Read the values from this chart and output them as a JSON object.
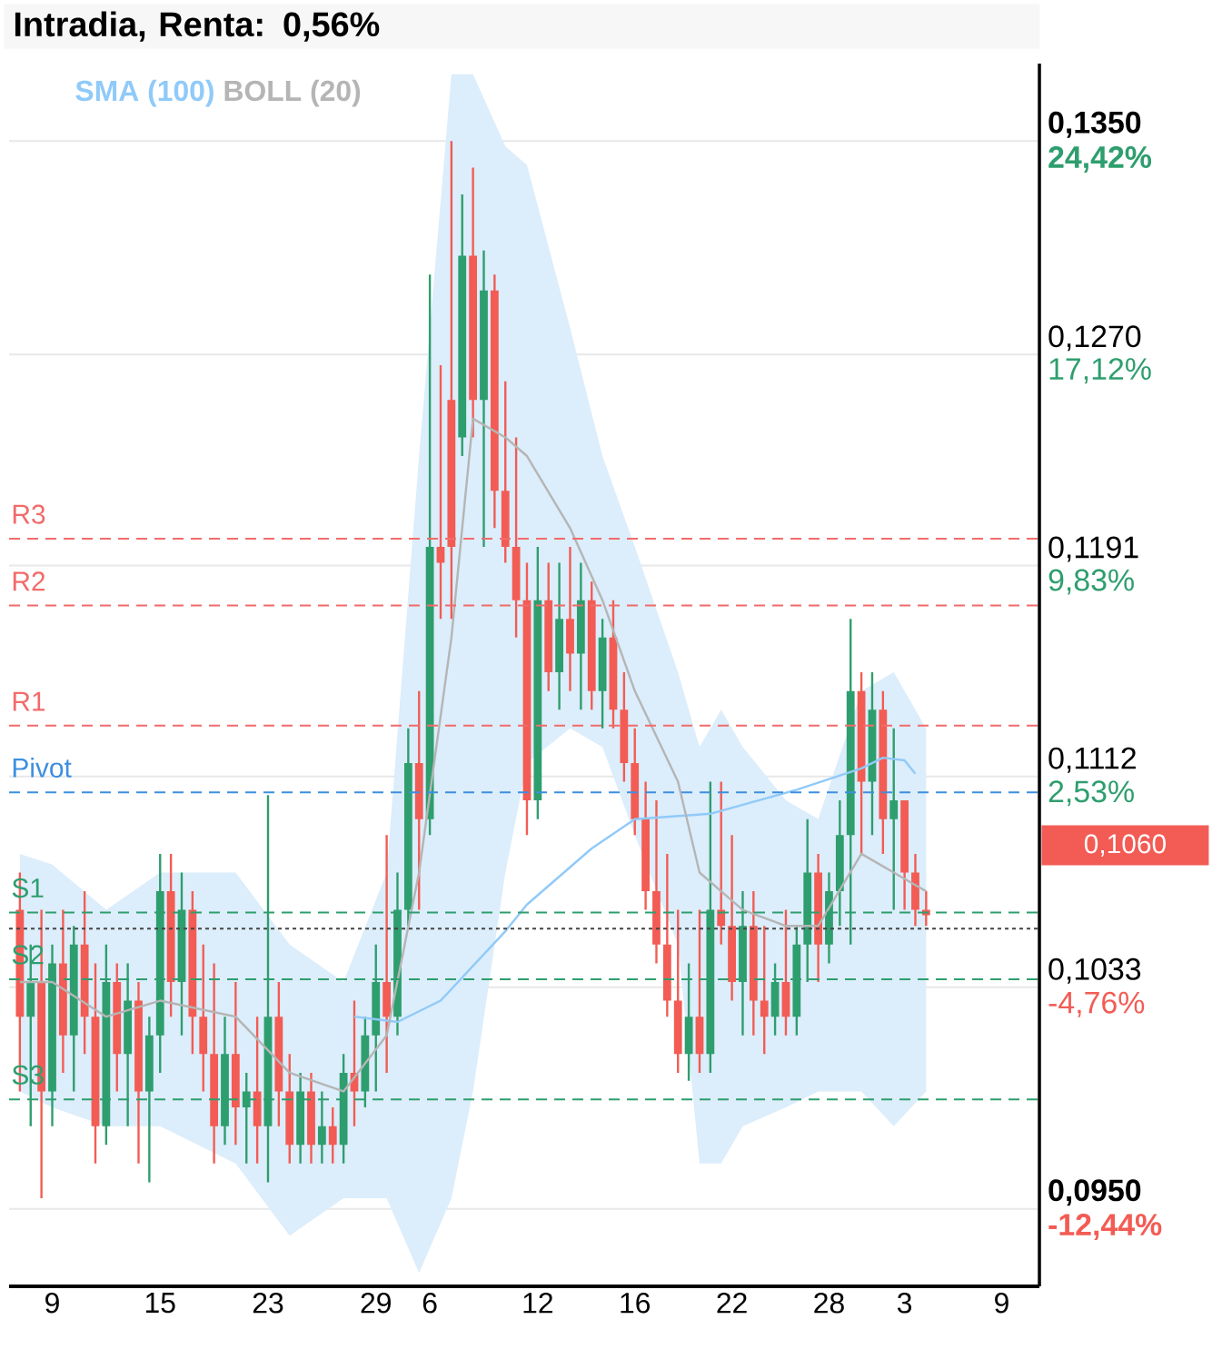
{
  "chart_data": {
    "type": "candlestick",
    "title": "Intradia, Renta: 0,56%",
    "categories": [
      null,
      null,
      null,
      "9",
      null,
      null,
      null,
      null,
      null,
      null,
      null,
      null,
      null,
      "15",
      null,
      null,
      null,
      null,
      null,
      null,
      null,
      null,
      null,
      "23",
      null,
      null,
      null,
      null,
      null,
      null,
      null,
      null,
      null,
      "29",
      null,
      null,
      null,
      null,
      "6",
      null,
      null,
      null,
      null,
      null,
      null,
      null,
      null,
      null,
      "12",
      null,
      null,
      null,
      null,
      null,
      null,
      null,
      null,
      "16",
      null,
      null,
      null,
      null,
      null,
      null,
      null,
      null,
      "22",
      null,
      null,
      null,
      null,
      null,
      null,
      null,
      null,
      "28",
      null,
      null,
      null,
      null,
      null,
      null,
      "3",
      null,
      null,
      null,
      null,
      null,
      null,
      null,
      null,
      "9",
      null,
      null,
      null
    ],
    "ylim": [
      0.0921,
      0.1379
    ],
    "yticks": [
      {
        "value": 0.135,
        "label": "0,1350"
      },
      {
        "value": 0.127,
        "label": "0,1270"
      },
      {
        "value": 0.1191,
        "label": "0,1191"
      },
      {
        "value": 0.1112,
        "label": "0,1112"
      },
      {
        "value": 0.1033,
        "label": "0,1033"
      },
      {
        "value": 0.095,
        "label": "0,0950"
      }
    ],
    "y2lim": [
      -15.12,
      27.1
    ],
    "y2ticks": [
      {
        "value": 24.42,
        "label": "24,42%"
      },
      {
        "value": 17.12,
        "label": "17,12%"
      },
      {
        "value": 9.83,
        "label": "9,83%"
      },
      {
        "value": 2.53,
        "label": "2,53%"
      },
      {
        "value": -4.76,
        "label": "-4,76%"
      },
      {
        "value": -12.44,
        "label": "-12,44%"
      }
    ],
    "grid": "y",
    "legend": "top left",
    "series": [
      {
        "ohlc": [
          [
            0.1062,
            0.1076,
            0.0994,
            0.1022
          ],
          [
            0.1022,
            0.1049,
            0.0981,
            0.1035
          ],
          [
            0.1035,
            0.1062,
            0.0954,
            0.0994
          ],
          [
            0.0994,
            0.1049,
            0.0981,
            0.1042
          ],
          [
            0.1042,
            0.1062,
            0.1001,
            0.1015
          ],
          [
            0.1015,
            0.1056,
            0.0994,
            0.1049
          ],
          [
            0.1049,
            0.1069,
            0.1008,
            0.1022
          ],
          [
            0.1022,
            0.1042,
            0.0967,
            0.0981
          ],
          [
            0.0981,
            0.1049,
            0.0974,
            0.1035
          ],
          [
            0.1035,
            0.1042,
            0.0994,
            0.1008
          ],
          [
            0.1008,
            0.1042,
            0.0981,
            0.1028
          ],
          [
            0.1028,
            0.1035,
            0.0967,
            0.0994
          ],
          [
            0.0994,
            0.1022,
            0.096,
            0.1015
          ],
          [
            0.1015,
            0.1083,
            0.1001,
            0.1069
          ],
          [
            0.1069,
            0.1083,
            0.1022,
            0.1035
          ],
          [
            0.1035,
            0.1076,
            0.1015,
            0.1062
          ],
          [
            0.1062,
            0.1069,
            0.1008,
            0.1022
          ],
          [
            0.1022,
            0.1049,
            0.0994,
            0.1008
          ],
          [
            0.1008,
            0.1042,
            0.0967,
            0.0981
          ],
          [
            0.0981,
            0.1022,
            0.0974,
            0.1008
          ],
          [
            0.1008,
            0.1035,
            0.0974,
            0.0988
          ],
          [
            0.0988,
            0.1001,
            0.0967,
            0.0994
          ],
          [
            0.0994,
            0.1022,
            0.0967,
            0.0981
          ],
          [
            0.0981,
            0.1105,
            0.096,
            0.1022
          ],
          [
            0.1022,
            0.1035,
            0.0981,
            0.0994
          ],
          [
            0.0994,
            0.1008,
            0.0967,
            0.0974
          ],
          [
            0.0974,
            0.1001,
            0.0967,
            0.0994
          ],
          [
            0.0994,
            0.1001,
            0.0967,
            0.0974
          ],
          [
            0.0974,
            0.0994,
            0.0967,
            0.0981
          ],
          [
            0.0981,
            0.0988,
            0.0967,
            0.0974
          ],
          [
            0.0974,
            0.1008,
            0.0967,
            0.1001
          ],
          [
            0.1001,
            0.1028,
            0.0981,
            0.0994
          ],
          [
            0.0994,
            0.1022,
            0.0988,
            0.1015
          ],
          [
            0.1015,
            0.1049,
            0.0994,
            0.1035
          ],
          [
            0.1035,
            0.109,
            0.1001,
            0.1022
          ],
          [
            0.1022,
            0.1076,
            0.1015,
            0.1062
          ],
          [
            0.1062,
            0.113,
            0.1056,
            0.1117
          ],
          [
            0.1117,
            0.1144,
            0.1062,
            0.1096
          ],
          [
            0.1096,
            0.13,
            0.109,
            0.1198
          ],
          [
            0.1198,
            0.1266,
            0.1171,
            0.1192
          ],
          [
            0.1253,
            0.135,
            0.1171,
            0.1198
          ],
          [
            0.1239,
            0.133,
            0.1232,
            0.1307
          ],
          [
            0.1307,
            0.134,
            0.1239,
            0.1253
          ],
          [
            0.1253,
            0.1309,
            0.1198,
            0.1294
          ],
          [
            0.1294,
            0.13,
            0.1205,
            0.1219
          ],
          [
            0.1219,
            0.126,
            0.1192,
            0.1198
          ],
          [
            0.1198,
            0.1239,
            0.1164,
            0.1178
          ],
          [
            0.1178,
            0.1192,
            0.109,
            0.1103
          ],
          [
            0.1103,
            0.1198,
            0.1096,
            0.1178
          ],
          [
            0.1178,
            0.1192,
            0.1144,
            0.1151
          ],
          [
            0.1151,
            0.1192,
            0.1137,
            0.1171
          ],
          [
            0.1171,
            0.1198,
            0.1144,
            0.1158
          ],
          [
            0.1158,
            0.1192,
            0.1137,
            0.1178
          ],
          [
            0.1178,
            0.1185,
            0.1137,
            0.1144
          ],
          [
            0.1144,
            0.1171,
            0.113,
            0.1164
          ],
          [
            0.1164,
            0.1178,
            0.113,
            0.1137
          ],
          [
            0.1137,
            0.1151,
            0.111,
            0.1117
          ],
          [
            0.1117,
            0.113,
            0.109,
            0.1096
          ],
          [
            0.1096,
            0.111,
            0.1062,
            0.1069
          ],
          [
            0.1069,
            0.1103,
            0.1042,
            0.1049
          ],
          [
            0.1049,
            0.1083,
            0.1022,
            0.1028
          ],
          [
            0.1028,
            0.1062,
            0.1001,
            0.1008
          ],
          [
            0.1008,
            0.1042,
            0.0998,
            0.1022
          ],
          [
            0.1022,
            0.1062,
            0.1001,
            0.1008
          ],
          [
            0.1008,
            0.111,
            0.1001,
            0.1062
          ],
          [
            0.1062,
            0.111,
            0.1049,
            0.1056
          ],
          [
            0.1056,
            0.109,
            0.1028,
            0.1035
          ],
          [
            0.1035,
            0.1069,
            0.1015,
            0.1056
          ],
          [
            0.1056,
            0.1069,
            0.1015,
            0.1028
          ],
          [
            0.1028,
            0.1056,
            0.1008,
            0.1022
          ],
          [
            0.1022,
            0.1042,
            0.1015,
            0.1035
          ],
          [
            0.1035,
            0.1062,
            0.1015,
            0.1022
          ],
          [
            0.1022,
            0.1056,
            0.1015,
            0.1049
          ],
          [
            0.1049,
            0.1096,
            0.1035,
            0.1076
          ],
          [
            0.1076,
            0.1083,
            0.1035,
            0.1049
          ],
          [
            0.1049,
            0.1076,
            0.1042,
            0.1069
          ],
          [
            0.1069,
            0.1103,
            0.1056,
            0.109
          ],
          [
            0.109,
            0.1171,
            0.1049,
            0.1144
          ],
          [
            0.1144,
            0.1151,
            0.1083,
            0.111
          ],
          [
            0.111,
            0.1151,
            0.109,
            0.1137
          ],
          [
            0.1137,
            0.1144,
            0.1083,
            0.1096
          ],
          [
            0.1096,
            0.113,
            0.1062,
            0.1103
          ],
          [
            0.1103,
            0.1103,
            0.1062,
            0.1076
          ],
          [
            0.1076,
            0.1083,
            0.1056,
            0.1062
          ],
          [
            0.1062,
            0.1069,
            0.1056,
            0.106
          ],
          null,
          null,
          null,
          null,
          null,
          null,
          null,
          null,
          null,
          null
        ],
        "colors": [
          "#f25c54",
          "#2e9e6e",
          "#f25c54",
          "#2e9e6e",
          "#f25c54",
          "#2e9e6e",
          "#f25c54",
          "#f25c54",
          "#2e9e6e",
          "#f25c54",
          "#2e9e6e",
          "#f25c54",
          "#2e9e6e",
          "#2e9e6e",
          "#f25c54",
          "#2e9e6e",
          "#f25c54",
          "#f25c54",
          "#f25c54",
          "#2e9e6e",
          "#f25c54",
          "#2e9e6e",
          "#f25c54",
          "#2e9e6e",
          "#f25c54",
          "#f25c54",
          "#2e9e6e",
          "#f25c54",
          "#2e9e6e",
          "#f25c54",
          "#2e9e6e",
          "#f25c54",
          "#2e9e6e",
          "#2e9e6e",
          "#f25c54",
          "#2e9e6e",
          "#2e9e6e",
          "#f25c54",
          "#2e9e6e",
          "#f25c54",
          "#f25c54",
          "#2e9e6e",
          "#f25c54",
          "#2e9e6e",
          "#f25c54",
          "#f25c54",
          "#f25c54",
          "#f25c54",
          "#2e9e6e",
          "#f25c54",
          "#2e9e6e",
          "#f25c54",
          "#2e9e6e",
          "#f25c54",
          "#2e9e6e",
          "#f25c54",
          "#f25c54",
          "#f25c54",
          "#f25c54",
          "#f25c54",
          "#f25c54",
          "#f25c54",
          "#2e9e6e",
          "#f25c54",
          "#2e9e6e",
          "#f25c54",
          "#f25c54",
          "#2e9e6e",
          "#f25c54",
          "#f25c54",
          "#2e9e6e",
          "#f25c54",
          "#2e9e6e",
          "#2e9e6e",
          "#f25c54",
          "#2e9e6e",
          "#2e9e6e",
          "#2e9e6e",
          "#f25c54",
          "#2e9e6e",
          "#f25c54",
          "#2e9e6e",
          "#f25c54",
          "#f25c54",
          "#f25c54",
          null,
          null,
          null,
          null,
          null,
          null,
          null,
          null,
          null,
          null
        ]
      },
      {
        "type": "line",
        "name": "SMA (100)",
        "color": "#90caf9",
        "values": [
          null,
          null,
          null,
          null,
          null,
          null,
          null,
          null,
          null,
          null,
          null,
          null,
          null,
          null,
          null,
          null,
          null,
          null,
          null,
          null,
          null,
          null,
          null,
          null,
          null,
          null,
          null,
          null,
          null,
          null,
          null,
          0.1022,
          null,
          null,
          null,
          0.102,
          null,
          null,
          null,
          0.1028,
          null,
          null,
          null,
          null,
          null,
          0.1054,
          null,
          0.1064,
          null,
          null,
          null,
          null,
          null,
          0.1085,
          null,
          null,
          null,
          0.1096,
          null,
          null,
          null,
          null,
          null,
          null,
          0.1098,
          null,
          null,
          null,
          null,
          null,
          null,
          null,
          0.1107,
          null,
          null,
          null,
          null,
          null,
          0.1115,
          null,
          0.1119,
          null,
          0.1118,
          0.1113,
          null,
          null,
          null,
          null,
          null,
          null,
          null,
          null,
          null,
          null,
          null
        ]
      },
      {
        "type": "line",
        "name": "BOLL (20)",
        "color": "#b5b5b5",
        "values": [
          0.1035,
          null,
          null,
          0.1035,
          null,
          null,
          null,
          null,
          0.1022,
          null,
          null,
          null,
          null,
          0.1028,
          null,
          null,
          null,
          null,
          null,
          null,
          0.1022,
          null,
          null,
          null,
          null,
          0.1001,
          null,
          null,
          null,
          null,
          0.0994,
          null,
          null,
          null,
          0.1015,
          null,
          null,
          0.1076,
          null,
          null,
          0.1164,
          null,
          0.1246,
          null,
          null,
          0.1239,
          null,
          0.1232,
          null,
          null,
          null,
          0.1205,
          null,
          null,
          0.1178,
          null,
          null,
          0.1144,
          null,
          null,
          null,
          0.111,
          null,
          0.1076,
          null,
          0.1069,
          null,
          0.1062,
          null,
          null,
          null,
          0.1056,
          null,
          null,
          0.1056,
          null,
          null,
          null,
          0.1083,
          null,
          null,
          0.1076,
          null,
          null,
          0.1069,
          null,
          null,
          null,
          null,
          null,
          null,
          null,
          null,
          null,
          null
        ],
        "upper": [
          0.1083,
          null,
          null,
          0.1079,
          null,
          null,
          null,
          null,
          0.1062,
          null,
          null,
          null,
          null,
          0.1076,
          null,
          null,
          null,
          null,
          null,
          null,
          0.1076,
          null,
          null,
          null,
          null,
          0.1049,
          null,
          null,
          null,
          null,
          0.1035,
          null,
          null,
          null,
          0.1076,
          null,
          null,
          0.1232,
          null,
          null,
          0.1375,
          null,
          0.1375,
          null,
          null,
          0.1348,
          null,
          0.1341,
          null,
          null,
          null,
          0.128,
          null,
          null,
          0.1232,
          null,
          null,
          0.1198,
          null,
          null,
          null,
          0.1151,
          null,
          0.1123,
          null,
          0.1137,
          null,
          0.1123,
          null,
          null,
          null,
          0.1103,
          null,
          null,
          0.1096,
          null,
          null,
          null,
          0.1144,
          null,
          null,
          0.1151,
          null,
          null,
          0.113,
          null,
          null,
          null,
          null,
          null,
          null,
          null,
          null,
          null,
          null
        ],
        "lower": [
          0.0994,
          null,
          null,
          0.0988,
          null,
          null,
          null,
          null,
          0.0981,
          null,
          null,
          null,
          null,
          0.0981,
          null,
          null,
          null,
          null,
          null,
          null,
          0.0967,
          null,
          null,
          null,
          null,
          0.094,
          null,
          null,
          null,
          null,
          0.0954,
          null,
          null,
          null,
          0.0954,
          null,
          null,
          0.0926,
          null,
          null,
          0.0954,
          null,
          0.0994,
          null,
          null,
          0.1076,
          null,
          0.1117,
          null,
          null,
          null,
          0.113,
          null,
          null,
          0.1123,
          null,
          null,
          0.109,
          null,
          null,
          null,
          0.1049,
          null,
          0.0967,
          null,
          0.0967,
          null,
          0.0981,
          null,
          null,
          null,
          0.0988,
          null,
          null,
          0.0994,
          null,
          null,
          null,
          0.0994,
          null,
          null,
          0.0981,
          null,
          null,
          0.0994,
          null,
          null,
          null,
          null,
          null,
          null,
          null,
          null,
          null,
          null
        ]
      }
    ],
    "ref_lines": [
      {
        "axis": "y",
        "value": 0.1201,
        "label": "R3",
        "color": "#f26b6b",
        "line_style": "dashed"
      },
      {
        "axis": "y",
        "value": 0.1176,
        "label": "R2",
        "color": "#f26b6b",
        "line_style": "dashed"
      },
      {
        "axis": "y",
        "value": 0.1131,
        "label": "R1",
        "color": "#f26b6b",
        "line_style": "dashed"
      },
      {
        "axis": "y",
        "value": 0.1106,
        "label": "Pivot",
        "color": "#3d8fe0",
        "line_style": "dashed"
      },
      {
        "axis": "y",
        "value": 0.1061,
        "label": "S1",
        "color": "#2e9e6e",
        "line_style": "dashed"
      },
      {
        "axis": "y",
        "value": 0.1036,
        "label": "S2",
        "color": "#2e9e6e",
        "line_style": "dashed"
      },
      {
        "axis": "y",
        "value": 0.0991,
        "label": "S3",
        "color": "#2e9e6e",
        "line_style": "dashed"
      },
      {
        "axis": "y",
        "value": 0.1055,
        "color": "#444444",
        "line_style": "dotted"
      }
    ],
    "annotations": [
      "0,1060"
    ]
  }
}
